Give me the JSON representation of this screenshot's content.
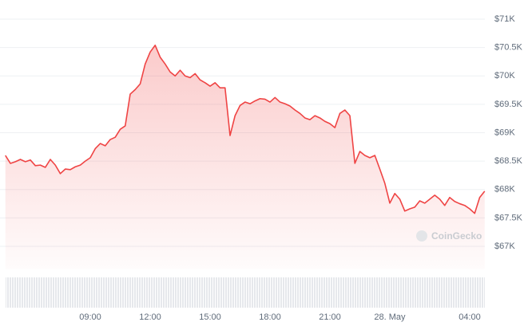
{
  "chart_data": {
    "type": "area",
    "color": "#ef4444",
    "watermark": "CoinGecko",
    "ylim": [
      66600,
      71300
    ],
    "yticks": [
      {
        "value": 67000,
        "label": "$67K"
      },
      {
        "value": 67500,
        "label": "$67.5K"
      },
      {
        "value": 68000,
        "label": "$68K"
      },
      {
        "value": 68500,
        "label": "$68.5K"
      },
      {
        "value": 69000,
        "label": "$69K"
      },
      {
        "value": 69500,
        "label": "$69.5K"
      },
      {
        "value": 70000,
        "label": "$70K"
      },
      {
        "value": 70500,
        "label": "$70.5K"
      },
      {
        "value": 71000,
        "label": "$71K"
      }
    ],
    "grid": true,
    "categories": [
      null,
      null,
      null,
      null,
      null,
      null,
      null,
      null,
      null,
      null,
      null,
      null,
      null,
      null,
      null,
      null,
      null,
      "09:00",
      null,
      null,
      null,
      null,
      null,
      null,
      null,
      null,
      null,
      null,
      null,
      "12:00",
      null,
      null,
      null,
      null,
      null,
      null,
      null,
      null,
      null,
      null,
      null,
      "15:00",
      null,
      null,
      null,
      null,
      null,
      null,
      null,
      null,
      null,
      null,
      null,
      "18:00",
      null,
      null,
      null,
      null,
      null,
      null,
      null,
      null,
      null,
      null,
      null,
      "21:00",
      null,
      null,
      null,
      null,
      null,
      null,
      null,
      null,
      null,
      null,
      null,
      "28. May",
      null,
      null,
      null,
      null,
      null,
      null,
      null,
      null,
      null,
      null,
      null,
      null,
      null,
      null,
      null,
      "04:00",
      null,
      null,
      null
    ],
    "values": [
      68600,
      68460,
      68490,
      68530,
      68490,
      68520,
      68420,
      68430,
      68390,
      68530,
      68430,
      68280,
      68360,
      68350,
      68400,
      68430,
      68500,
      68560,
      68720,
      68810,
      68770,
      68880,
      68920,
      69060,
      69120,
      69680,
      69760,
      69860,
      70210,
      70420,
      70540,
      70330,
      70210,
      70070,
      70000,
      70100,
      70000,
      69970,
      70040,
      69930,
      69880,
      69820,
      69880,
      69790,
      69790,
      68950,
      69300,
      69480,
      69540,
      69510,
      69560,
      69600,
      69590,
      69540,
      69620,
      69540,
      69510,
      69470,
      69400,
      69340,
      69260,
      69230,
      69300,
      69260,
      69200,
      69160,
      69090,
      69340,
      69400,
      69300,
      68460,
      68670,
      68600,
      68560,
      68600,
      68360,
      68110,
      67760,
      67930,
      67830,
      67620,
      67660,
      67690,
      67800,
      67760,
      67830,
      67900,
      67830,
      67720,
      67860,
      67790,
      67750,
      67720,
      67660,
      67580,
      67860,
      67970
    ]
  }
}
